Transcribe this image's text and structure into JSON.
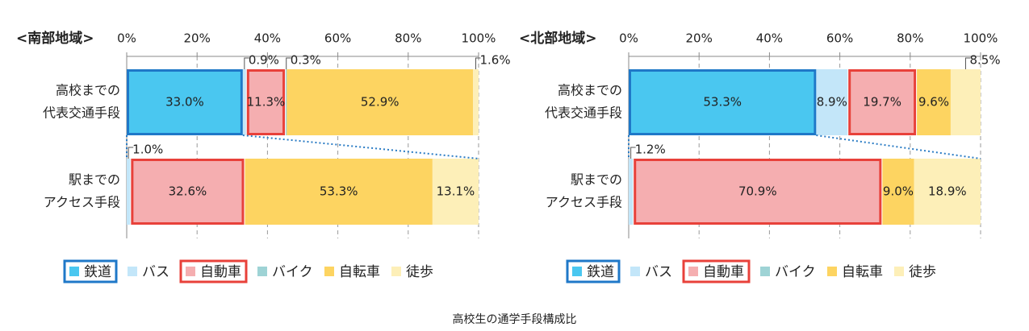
{
  "caption": "高校生の通学手段構成比",
  "colors": {
    "鉄道": "#4ac7f0",
    "バス": "#c3e6f9",
    "自動車": "#f5aeb0",
    "バイク": "#9ed3d5",
    "自転車": "#fdd461",
    "徒歩": "#fdefb8",
    "railway_border": "#1f78c8",
    "car_border": "#e8413a",
    "connector": "#2b7cc4"
  },
  "chart_data": [
    {
      "type": "bar",
      "stacked": "percent",
      "orientation": "horizontal",
      "title": "<南部地域>",
      "xlim": [
        0,
        100
      ],
      "xticks": [
        "0%",
        "20%",
        "40%",
        "60%",
        "80%",
        "100%"
      ],
      "categories": [
        "高校までの\n代表交通手段",
        "駅までの\nアクセス手段"
      ],
      "categories_lines": [
        [
          "高校までの",
          "代表交通手段"
        ],
        [
          "駅までの",
          "アクセス手段"
        ]
      ],
      "series": [
        {
          "name": "鉄道",
          "values": [
            33.0,
            0
          ]
        },
        {
          "name": "バス",
          "values": [
            0.9,
            1.0
          ]
        },
        {
          "name": "自動車",
          "values": [
            11.3,
            32.6
          ]
        },
        {
          "name": "バイク",
          "values": [
            0.3,
            0
          ]
        },
        {
          "name": "自転車",
          "values": [
            52.9,
            53.3
          ]
        },
        {
          "name": "徒歩",
          "values": [
            1.6,
            13.1
          ]
        }
      ],
      "labels": [
        [
          "33.0%",
          "0.9%",
          "11.3%",
          "0.3%",
          "52.9%",
          "1.6%"
        ],
        [
          "",
          "1.0%",
          "32.6%",
          "",
          "53.3%",
          "13.1%"
        ]
      ],
      "grid": true,
      "legend": [
        "鉄道",
        "バス",
        "自動車",
        "バイク",
        "自転車",
        "徒歩"
      ],
      "legend_position": "bottom"
    },
    {
      "type": "bar",
      "stacked": "percent",
      "orientation": "horizontal",
      "title": "<北部地域>",
      "xlim": [
        0,
        100
      ],
      "xticks": [
        "0%",
        "20%",
        "40%",
        "60%",
        "80%",
        "100%"
      ],
      "categories": [
        "高校までの\n代表交通手段",
        "駅までの\nアクセス手段"
      ],
      "categories_lines": [
        [
          "高校までの",
          "代表交通手段"
        ],
        [
          "駅までの",
          "アクセス手段"
        ]
      ],
      "series": [
        {
          "name": "鉄道",
          "values": [
            53.3,
            0
          ]
        },
        {
          "name": "バス",
          "values": [
            8.9,
            1.2
          ]
        },
        {
          "name": "自動車",
          "values": [
            19.7,
            70.9
          ]
        },
        {
          "name": "バイク",
          "values": [
            0,
            0
          ]
        },
        {
          "name": "自転車",
          "values": [
            9.6,
            9.0
          ]
        },
        {
          "name": "徒歩",
          "values": [
            8.5,
            18.9
          ]
        }
      ],
      "labels": [
        [
          "53.3%",
          "8.9%",
          "19.7%",
          "",
          "9.6%",
          "8.5%"
        ],
        [
          "",
          "1.2%",
          "70.9%",
          "",
          "9.0%",
          "18.9%"
        ]
      ],
      "grid": true,
      "legend": [
        "鉄道",
        "バス",
        "自動車",
        "バイク",
        "自転車",
        "徒歩"
      ],
      "legend_position": "bottom"
    }
  ]
}
